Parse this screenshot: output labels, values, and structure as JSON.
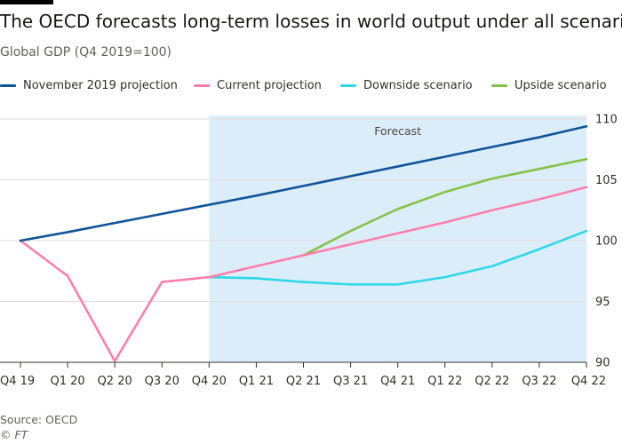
{
  "header": {
    "title": "The OECD forecasts long-term losses in world output under all scenarios",
    "subtitle": "Global GDP (Q4 2019=100)"
  },
  "footer": {
    "source": "Source: OECD",
    "copyright": "© FT"
  },
  "colors": {
    "background": "#ffffff",
    "forecast_shade": "#dcedfa",
    "grid": "#e2dedb",
    "axis_text": "#33302e"
  },
  "chart_data": {
    "type": "line",
    "title": "The OECD forecasts long-term losses in world output under all scenarios",
    "subtitle": "Global GDP (Q4 2019=100)",
    "xlabel": "",
    "ylabel": "",
    "categories": [
      "Q4 19",
      "Q1 20",
      "Q2 20",
      "Q3 20",
      "Q4 20",
      "Q1 21",
      "Q2 21",
      "Q3 21",
      "Q4 21",
      "Q1 22",
      "Q2 22",
      "Q3 22",
      "Q4 22"
    ],
    "ylim": [
      90,
      110
    ],
    "yticks": [
      90,
      95,
      100,
      105,
      110
    ],
    "y_axis_side": "right",
    "grid": true,
    "legend_position": "top",
    "forecast_region": {
      "start": "Q4 20",
      "end": "Q4 22",
      "label": "Forecast"
    },
    "series": [
      {
        "name": "November 2019 projection",
        "color": "#0f5499",
        "values": [
          100,
          100.7,
          101.45,
          102.2,
          102.95,
          103.7,
          104.5,
          105.3,
          106.1,
          106.9,
          107.7,
          108.5,
          109.4
        ]
      },
      {
        "name": "Current projection",
        "color": "#ff7faa",
        "values": [
          100,
          97.1,
          90.1,
          96.6,
          97.0,
          97.9,
          98.8,
          99.7,
          100.6,
          101.5,
          102.5,
          103.4,
          104.4
        ]
      },
      {
        "name": "Downside scenario",
        "color": "#2fd8e8",
        "values": [
          null,
          null,
          null,
          null,
          97.0,
          96.9,
          96.6,
          96.4,
          96.4,
          97.0,
          97.9,
          99.3,
          100.8
        ]
      },
      {
        "name": "Upside scenario",
        "color": "#85c247",
        "values": [
          null,
          null,
          null,
          null,
          null,
          null,
          98.8,
          100.8,
          102.6,
          104.0,
          105.1,
          105.9,
          106.7
        ]
      }
    ]
  }
}
